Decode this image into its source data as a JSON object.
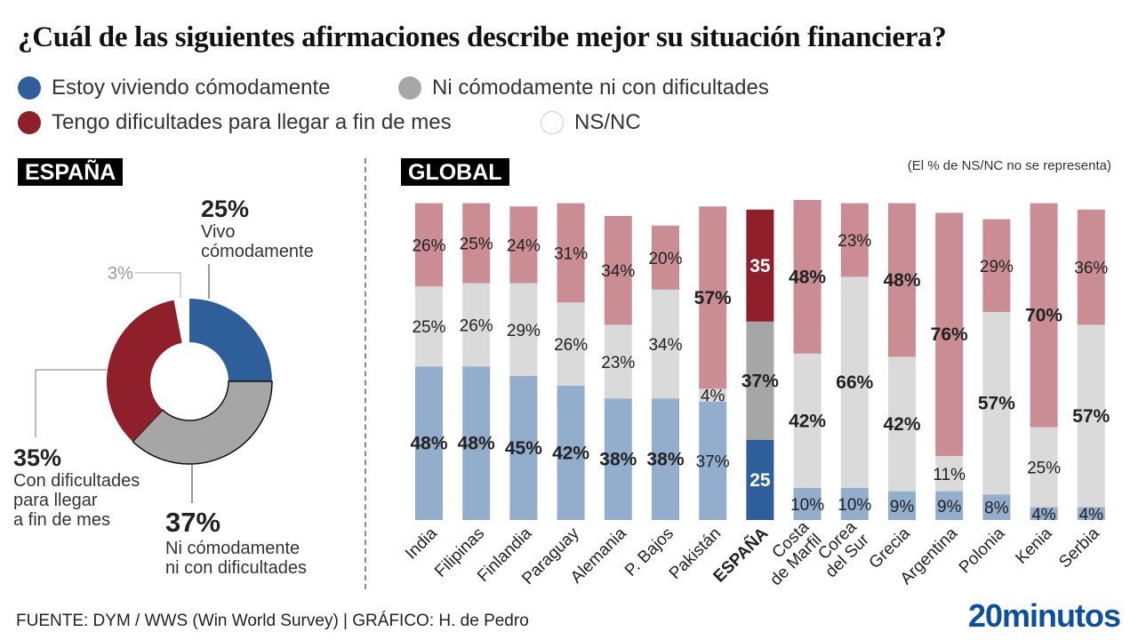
{
  "title": "¿Cuál de las siguientes afirmaciones describe mejor su situación financiera?",
  "legend": [
    {
      "label": "Estoy viviendo cómodamente",
      "color": "#2f5f9b"
    },
    {
      "label": "Ni cómodamente ni con dificultades",
      "color": "#a6a6a6"
    },
    {
      "label": "Tengo dificultades para llegar a fin de mes",
      "color": "#8f1f2a"
    },
    {
      "label": "NS/NC",
      "color": "#ffffff"
    }
  ],
  "spain_section": {
    "tag": "ESPAÑA",
    "labels": {
      "comfortable_pct": "25%",
      "comfortable_text_1": "Vivo",
      "comfortable_text_2": "cómodamente",
      "neither_pct": "37%",
      "neither_text_1": "Ni cómodamente",
      "neither_text_2": "ni con dificultades",
      "difficult_pct": "35%",
      "difficult_text_1": "Con dificultades",
      "difficult_text_2": "para llegar",
      "difficult_text_3": "a fin de mes",
      "nsnc_pct": "3%"
    }
  },
  "global_section": {
    "tag": "GLOBAL",
    "note": "(El % de NS/NC no se representa)"
  },
  "footer": {
    "source": "FUENTE: DYM / WWS (Win World Survey)   |  GRÁFICO: H. de Pedro",
    "brand": "20minutos"
  },
  "chart_data": [
    {
      "type": "pie",
      "variant": "donut",
      "title": "ESPAÑA",
      "slices": [
        {
          "name": "Estoy viviendo cómodamente",
          "value": 25,
          "color": "#2f5f9b"
        },
        {
          "name": "Ni cómodamente ni con dificultades",
          "value": 37,
          "color": "#a6a6a6"
        },
        {
          "name": "Tengo dificultades para llegar a fin de mes",
          "value": 35,
          "color": "#8f1f2a"
        },
        {
          "name": "NS/NC",
          "value": 3,
          "color": "#ffffff"
        }
      ]
    },
    {
      "type": "bar",
      "stacked": true,
      "title": "GLOBAL",
      "note": "(El % de NS/NC no se representa)",
      "categories": [
        "India",
        "Filipinas",
        "Finlandia",
        "Paraguay",
        "Alemania",
        "P. Bajos",
        "Pakistán",
        "ESPAÑA",
        "Costa de Marfil",
        "Corea del Sur",
        "Grecia",
        "Argentina",
        "Polonia",
        "Kenia",
        "Serbia"
      ],
      "highlight": "ESPAÑA",
      "series": [
        {
          "name": "Estoy viviendo cómodamente",
          "values": [
            48,
            48,
            45,
            42,
            38,
            38,
            37,
            25,
            10,
            10,
            9,
            9,
            8,
            4,
            4
          ],
          "color": "#93adcd",
          "highlight_color": "#2f5f9b"
        },
        {
          "name": "Ni cómodamente ni con dificultades",
          "values": [
            25,
            26,
            29,
            26,
            23,
            34,
            4,
            37,
            42,
            66,
            42,
            11,
            57,
            25,
            57
          ],
          "color": "#dadada",
          "highlight_color": "#a6a6a6"
        },
        {
          "name": "Tengo dificultades para llegar a fin de mes",
          "values": [
            26,
            25,
            24,
            31,
            34,
            20,
            57,
            35,
            48,
            23,
            48,
            76,
            29,
            70,
            36
          ],
          "color": "#c98d93",
          "highlight_color": "#8f1f2a"
        }
      ],
      "data_labels": [
        [
          "48%",
          "25%",
          "26%"
        ],
        [
          "48%",
          "26%",
          "25%"
        ],
        [
          "45%",
          "29%",
          "24%"
        ],
        [
          "42%",
          "26%",
          "31%"
        ],
        [
          "38%",
          "23%",
          "34%"
        ],
        [
          "38%",
          "34%",
          "20%"
        ],
        [
          "37%",
          "4%",
          "57%"
        ],
        [
          "25",
          "37%",
          "35"
        ],
        [
          "10%",
          "42%",
          "48%"
        ],
        [
          "10%",
          "66%",
          "23%"
        ],
        [
          "9%",
          "42%",
          "48%"
        ],
        [
          "9%",
          "11%",
          "76%"
        ],
        [
          "8%",
          "57%",
          "29%"
        ],
        [
          "4%",
          "25%",
          "70%"
        ],
        [
          "4%",
          "57%",
          "36%"
        ]
      ],
      "ylim": [
        0,
        100
      ],
      "grid": false,
      "legend": "top-left"
    }
  ]
}
